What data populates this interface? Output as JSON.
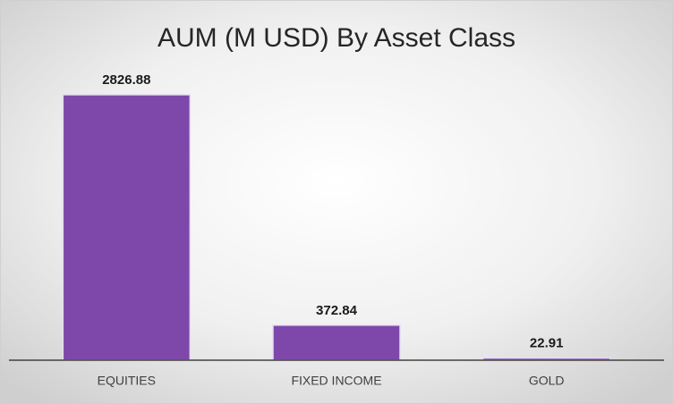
{
  "chart_data": {
    "type": "bar",
    "title": "AUM (M USD) By Asset Class",
    "categories": [
      "EQUITIES",
      "FIXED INCOME",
      "GOLD"
    ],
    "values": [
      2826.88,
      372.84,
      22.91
    ],
    "color": "#7e48aa"
  }
}
